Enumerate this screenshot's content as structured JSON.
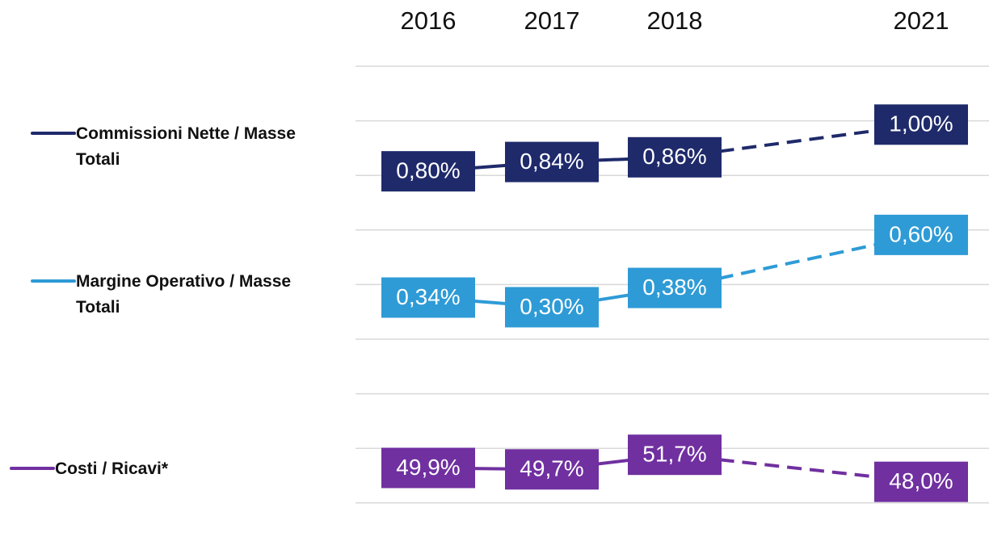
{
  "chart_data": {
    "type": "line",
    "categories": [
      "2016",
      "2017",
      "2018",
      "2021"
    ],
    "series": [
      {
        "name": "Commissioni Nette / Masse Totali",
        "color": "#1f2a6b",
        "ylim": [
          0.6,
          1.25
        ],
        "values": [
          0.8,
          0.84,
          0.86,
          1.0
        ],
        "value_labels": [
          "0,80%",
          "0,84%",
          "0,86%",
          "1,00%"
        ]
      },
      {
        "name": "Margine Operativo / Masse Totali",
        "color": "#2e9bd6",
        "ylim": [
          0,
          0.67
        ],
        "values": [
          0.34,
          0.3,
          0.38,
          0.6
        ],
        "value_labels": [
          "0,34%",
          "0,30%",
          "0,38%",
          "0,60%"
        ]
      },
      {
        "name": "Costi / Ricavi*",
        "color": "#7030a0",
        "ylim": [
          41,
          62
        ],
        "values": [
          49.9,
          49.7,
          51.7,
          48.0
        ],
        "value_labels": [
          "49,9%",
          "49,7%",
          "51,7%",
          "48,0%"
        ]
      }
    ]
  }
}
